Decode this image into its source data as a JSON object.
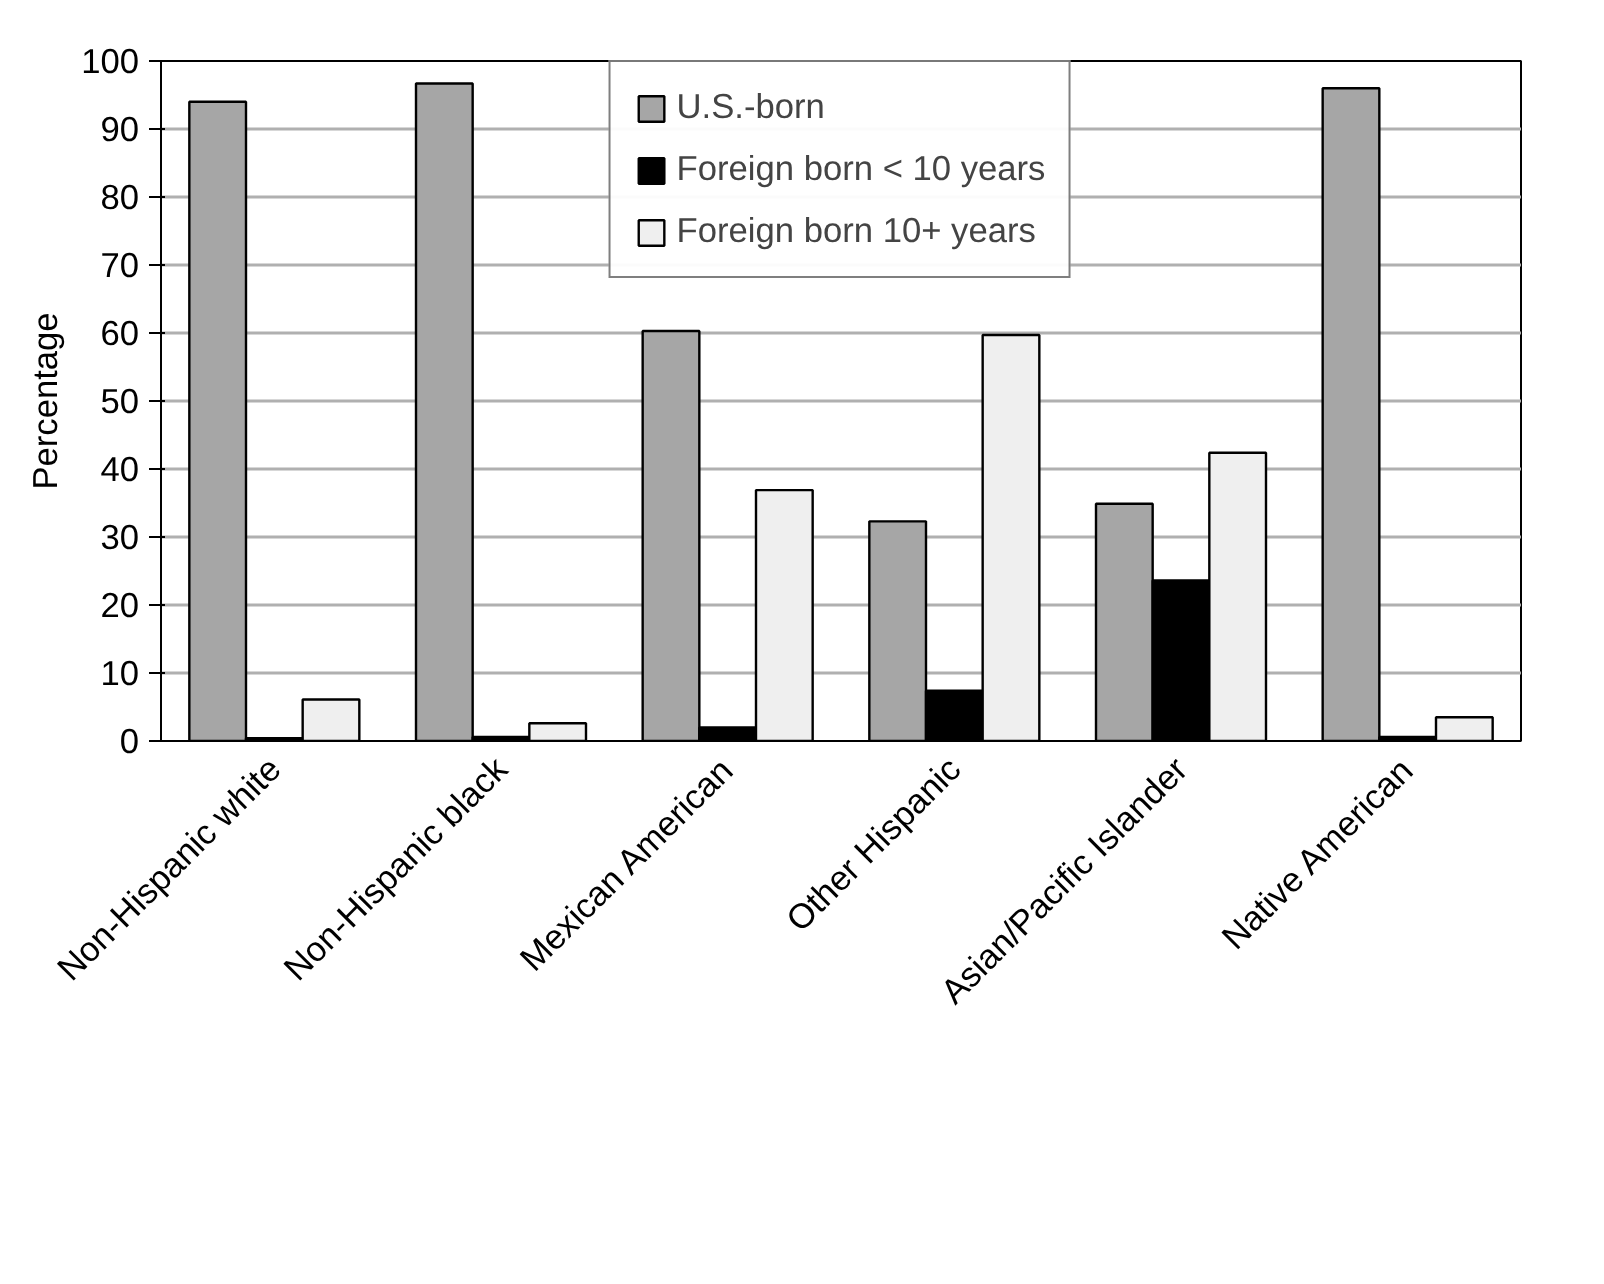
{
  "chart_data": {
    "type": "bar",
    "categories": [
      "Non-Hispanic white",
      "Non-Hispanic black",
      "Mexican American",
      "Other Hispanic",
      "Asian/Pacific Islander",
      "Native American"
    ],
    "ylabel": "Percentage",
    "series": [
      {
        "name": "U.S.-born",
        "color": "#a6a6a6",
        "values": [
          94,
          96.7,
          60.3,
          32.3,
          34.9,
          96
        ]
      },
      {
        "name": "Foreign born < 10 years",
        "color": "#000000",
        "values": [
          0.4,
          0.6,
          2,
          7.4,
          23.6,
          0.6
        ]
      },
      {
        "name": "Foreign born 10+ years",
        "color": "#efefef",
        "values": [
          6.1,
          2.6,
          36.9,
          59.7,
          42.4,
          3.5
        ]
      }
    ],
    "ylim": [
      0,
      100
    ],
    "yticks": [
      0,
      10,
      20,
      30,
      40,
      50,
      60,
      70,
      80,
      90,
      100
    ],
    "grid": "y",
    "legend": "top"
  }
}
